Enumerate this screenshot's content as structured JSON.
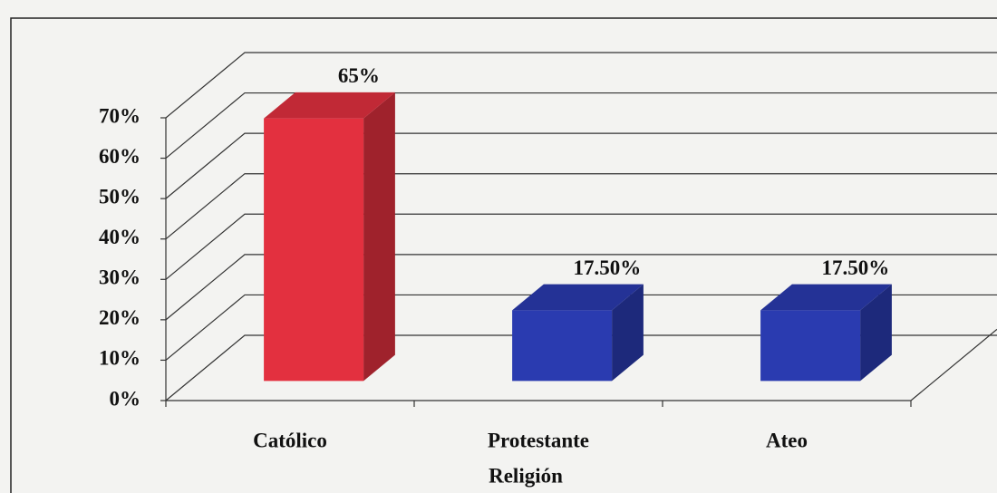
{
  "chart_data": {
    "type": "bar3d",
    "x_label": "Religión",
    "categories": [
      "Católico",
      "Protestante",
      "Ateo"
    ],
    "values": [
      65,
      17.5,
      17.5
    ],
    "value_labels": [
      "65%",
      "17.50%",
      "17.50%"
    ],
    "colors": [
      "#e3303f",
      "#2a3bb0",
      "#2a3bb0"
    ],
    "ylim": [
      0,
      70
    ],
    "yticks": [
      {
        "value": 0,
        "label": "0%"
      },
      {
        "value": 10,
        "label": "10%"
      },
      {
        "value": 20,
        "label": "20%"
      },
      {
        "value": 30,
        "label": "30%"
      },
      {
        "value": 40,
        "label": "40%"
      },
      {
        "value": 50,
        "label": "50%"
      },
      {
        "value": 60,
        "label": "60%"
      },
      {
        "value": 70,
        "label": "70%"
      }
    ],
    "grid": true
  }
}
